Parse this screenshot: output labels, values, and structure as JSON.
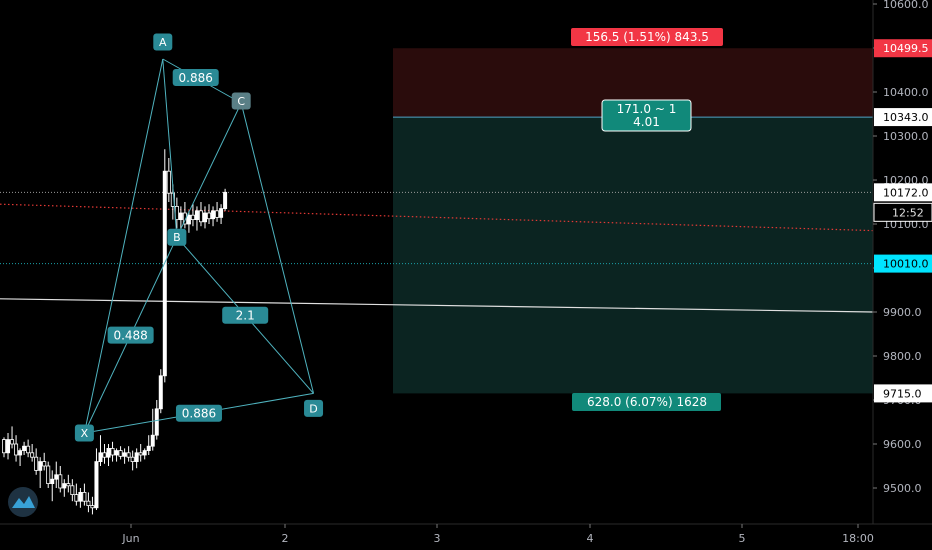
{
  "chart_data": {
    "type": "candlestick",
    "price_axis": {
      "range": [
        9440,
        10625
      ],
      "ticks": [
        "9500.0",
        "9600.0",
        "9700.0",
        "9800.0",
        "9900.0",
        "10000.0",
        "10100.0",
        "10200.0",
        "10300.0",
        "10400.0",
        "10500.0",
        "10600.0"
      ],
      "tick_values": [
        9500,
        9600,
        9700,
        9800,
        9900,
        10000,
        10100,
        10200,
        10300,
        10400,
        10500,
        10600
      ]
    },
    "time_axis": {
      "labels": [
        "Jun",
        "2",
        "3",
        "4",
        "5",
        "18:00"
      ],
      "bar_index": [
        0,
        38,
        76,
        114,
        152,
        180
      ]
    },
    "price_tags": [
      {
        "value": 10499.5,
        "label": "10499.5",
        "color": "#f23645",
        "text_color": "#ffffff"
      },
      {
        "value": 10343.0,
        "label": "10343.0",
        "color": "#ffffff",
        "text_color": "#000000"
      },
      {
        "value": 10172.0,
        "label": "10172.0",
        "color": "#ffffff",
        "text_color": "#000000"
      },
      {
        "value": 10010.0,
        "label": "10010.0",
        "color": "#00e5ff",
        "text_color": "#000000"
      },
      {
        "value": 9715.0,
        "label": "9715.0",
        "color": "#ffffff",
        "text_color": "#000000"
      }
    ],
    "countdown": "12:52",
    "last_price": 10172.0,
    "candles": [
      [
        9610,
        9615,
        9570,
        9580
      ],
      [
        9580,
        9625,
        9565,
        9610
      ],
      [
        9610,
        9640,
        9590,
        9600
      ],
      [
        9600,
        9620,
        9560,
        9575
      ],
      [
        9575,
        9590,
        9550,
        9585
      ],
      [
        9585,
        9605,
        9575,
        9595
      ],
      [
        9595,
        9610,
        9570,
        9580
      ],
      [
        9580,
        9600,
        9560,
        9570
      ],
      [
        9570,
        9590,
        9530,
        9540
      ],
      [
        9540,
        9570,
        9500,
        9560
      ],
      [
        9560,
        9580,
        9540,
        9550
      ],
      [
        9550,
        9560,
        9500,
        9510
      ],
      [
        9510,
        9540,
        9470,
        9520
      ],
      [
        9520,
        9560,
        9500,
        9530
      ],
      [
        9530,
        9550,
        9490,
        9500
      ],
      [
        9500,
        9520,
        9480,
        9510
      ],
      [
        9510,
        9530,
        9490,
        9505
      ],
      [
        9505,
        9520,
        9470,
        9485
      ],
      [
        9485,
        9510,
        9460,
        9470
      ],
      [
        9470,
        9500,
        9455,
        9490
      ],
      [
        9490,
        9510,
        9460,
        9470
      ],
      [
        9470,
        9490,
        9445,
        9460
      ],
      [
        9460,
        9480,
        9440,
        9455
      ],
      [
        9455,
        9590,
        9450,
        9560
      ],
      [
        9560,
        9620,
        9550,
        9580
      ],
      [
        9580,
        9600,
        9555,
        9570
      ],
      [
        9570,
        9600,
        9550,
        9590
      ],
      [
        9590,
        9605,
        9560,
        9575
      ],
      [
        9575,
        9590,
        9560,
        9585
      ],
      [
        9585,
        9595,
        9565,
        9572
      ],
      [
        9572,
        9590,
        9555,
        9580
      ],
      [
        9580,
        9595,
        9560,
        9570
      ],
      [
        9570,
        9585,
        9540,
        9560
      ],
      [
        9560,
        9590,
        9545,
        9580
      ],
      [
        9580,
        9600,
        9560,
        9575
      ],
      [
        9575,
        9590,
        9565,
        9585
      ],
      [
        9585,
        9620,
        9575,
        9595
      ],
      [
        9595,
        9680,
        9585,
        9620
      ],
      [
        9620,
        9700,
        9610,
        9680
      ],
      [
        9680,
        9770,
        9670,
        9755
      ],
      [
        9755,
        10270,
        9740,
        10220
      ],
      [
        10220,
        10250,
        10150,
        10170
      ],
      [
        10170,
        10190,
        10110,
        10140
      ],
      [
        10140,
        10160,
        10090,
        10110
      ],
      [
        10110,
        10140,
        10080,
        10125
      ],
      [
        10125,
        10150,
        10090,
        10100
      ],
      [
        10100,
        10130,
        10080,
        10120
      ],
      [
        10120,
        10145,
        10095,
        10110
      ],
      [
        10110,
        10140,
        10085,
        10130
      ],
      [
        10130,
        10150,
        10095,
        10105
      ],
      [
        10105,
        10140,
        10090,
        10125
      ],
      [
        10125,
        10145,
        10100,
        10112
      ],
      [
        10112,
        10140,
        10095,
        10130
      ],
      [
        10130,
        10150,
        10105,
        10115
      ],
      [
        10115,
        10145,
        10100,
        10135
      ],
      [
        10135,
        10180,
        10130,
        10172
      ]
    ],
    "harmonic_pattern": {
      "points": [
        {
          "name": "X",
          "bar": 20,
          "price": 9625
        },
        {
          "name": "A",
          "bar": 39.5,
          "price": 10475
        },
        {
          "name": "B",
          "bar": 43,
          "price": 10070
        },
        {
          "name": "C",
          "bar": 59,
          "price": 10375
        },
        {
          "name": "D",
          "bar": 77,
          "price": 9715
        }
      ],
      "ratios": [
        {
          "label": "0.488"
        },
        {
          "label": "0.886"
        },
        {
          "label": "2.1"
        },
        {
          "label": "0.886"
        }
      ]
    },
    "position": {
      "entry": 10343.0,
      "stop": 10499.5,
      "target": 9715.0,
      "stop_label": "156.5 (1.51%) 843.5",
      "target_label": "628.0 (6.07%) 1628",
      "ratio_line1": "171.0 ~ 1",
      "ratio_line2": "4.01"
    },
    "trend_line": {
      "price_start": 9930,
      "price_end": 9900
    },
    "ma_line": {
      "price_start": 10145,
      "price_end": 10085
    },
    "colors": {
      "background": "#000000",
      "candle": "#ffffff",
      "label_fill": "#2a8a96",
      "pattern_line": "#4fb3bf",
      "stop_zone": "#2a0c0c",
      "target_zone": "#0b2421",
      "ma_line": "#e53935",
      "logo_bg": "#1e3242",
      "logo_fg": "#38a1d6"
    }
  }
}
